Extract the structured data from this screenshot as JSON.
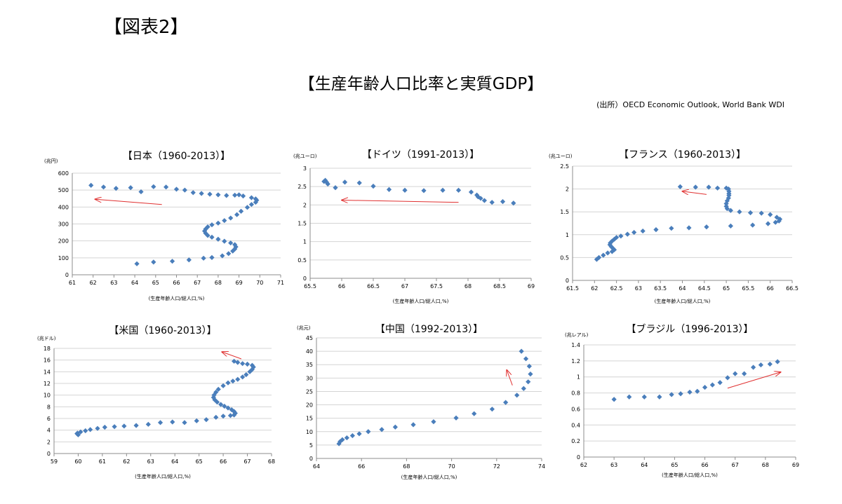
{
  "figure_label": "【図表2】",
  "main_title": "【生産年齢人口比率と実質GDP】",
  "source": "(出所）OECD Economic Outlook, World Bank WDI",
  "chart_data": [
    {
      "type": "scatter",
      "title": "【日本（1960-2013）】",
      "unit_label": "(兆円)",
      "xlabel": "(生産年齢人口/総人口,%)",
      "xlim": [
        61,
        71
      ],
      "xticks": [
        61,
        62,
        63,
        64,
        65,
        66,
        67,
        68,
        69,
        70,
        71
      ],
      "ylim": [
        0,
        600
      ],
      "yticks": [
        0,
        100,
        200,
        300,
        400,
        500,
        600
      ],
      "grid": true,
      "color": "#4a7ebb",
      "points": [
        [
          64.1,
          65
        ],
        [
          64.9,
          75
        ],
        [
          65.8,
          80
        ],
        [
          66.6,
          88
        ],
        [
          67.3,
          98
        ],
        [
          67.7,
          102
        ],
        [
          68.2,
          112
        ],
        [
          68.5,
          125
        ],
        [
          68.7,
          140
        ],
        [
          68.8,
          152
        ],
        [
          68.85,
          165
        ],
        [
          68.8,
          178
        ],
        [
          68.6,
          188
        ],
        [
          68.3,
          198
        ],
        [
          68.0,
          210
        ],
        [
          67.7,
          222
        ],
        [
          67.5,
          232
        ],
        [
          67.4,
          245
        ],
        [
          67.35,
          258
        ],
        [
          67.4,
          270
        ],
        [
          67.5,
          283
        ],
        [
          67.7,
          295
        ],
        [
          68.0,
          305
        ],
        [
          68.3,
          320
        ],
        [
          68.6,
          335
        ],
        [
          68.9,
          355
        ],
        [
          69.1,
          375
        ],
        [
          69.4,
          398
        ],
        [
          69.6,
          415
        ],
        [
          69.8,
          428
        ],
        [
          69.85,
          440
        ],
        [
          69.8,
          448
        ],
        [
          69.6,
          455
        ],
        [
          69.2,
          465
        ],
        [
          69.0,
          472
        ],
        [
          68.8,
          470
        ],
        [
          68.4,
          468
        ],
        [
          68.0,
          472
        ],
        [
          67.6,
          476
        ],
        [
          67.2,
          480
        ],
        [
          66.8,
          485
        ],
        [
          66.4,
          500
        ],
        [
          66.0,
          505
        ],
        [
          65.5,
          518
        ],
        [
          64.9,
          520
        ],
        [
          64.3,
          490
        ],
        [
          63.8,
          514
        ],
        [
          63.1,
          510
        ],
        [
          62.5,
          518
        ],
        [
          61.9,
          528
        ]
      ],
      "arrow": [
        [
          65.3,
          415
        ],
        [
          62.1,
          446
        ]
      ]
    },
    {
      "type": "scatter",
      "title": "【ドイツ（1991-2013）】",
      "unit_label": "(兆ユーロ)",
      "xlabel": "(生産年齢人口/総人口,%)",
      "xlim": [
        65.5,
        69
      ],
      "xticks": [
        65.5,
        66,
        66.5,
        67,
        67.5,
        68,
        68.5,
        69
      ],
      "ylim": [
        0,
        3
      ],
      "yticks": [
        0,
        0.5,
        1,
        1.5,
        2,
        2.5,
        3
      ],
      "grid": true,
      "color": "#4a7ebb",
      "points": [
        [
          68.72,
          2.05
        ],
        [
          68.55,
          2.09
        ],
        [
          68.38,
          2.07
        ],
        [
          68.26,
          2.12
        ],
        [
          68.2,
          2.18
        ],
        [
          68.16,
          2.22
        ],
        [
          68.14,
          2.27
        ],
        [
          68.05,
          2.35
        ],
        [
          67.85,
          2.4
        ],
        [
          67.6,
          2.4
        ],
        [
          67.3,
          2.39
        ],
        [
          67.0,
          2.4
        ],
        [
          66.75,
          2.42
        ],
        [
          66.5,
          2.51
        ],
        [
          66.28,
          2.6
        ],
        [
          66.05,
          2.62
        ],
        [
          65.9,
          2.47
        ],
        [
          65.78,
          2.57
        ],
        [
          65.76,
          2.62
        ],
        [
          65.74,
          2.67
        ],
        [
          65.72,
          2.64
        ]
      ],
      "arrow": [
        [
          67.85,
          2.07
        ],
        [
          66.0,
          2.13
        ]
      ]
    },
    {
      "type": "scatter",
      "title": "【フランス（1960-2013）】",
      "unit_label": "(兆ユーロ)",
      "xlabel": "(生産年齢人口/総人口,%)",
      "xlim": [
        61.5,
        66.5
      ],
      "xticks": [
        61.5,
        62,
        62.5,
        63,
        63.5,
        64,
        64.5,
        65,
        65.5,
        66,
        66.5
      ],
      "ylim": [
        0,
        2.5
      ],
      "yticks": [
        0,
        0.5,
        1,
        1.5,
        2,
        2.5
      ],
      "grid": true,
      "color": "#4a7ebb",
      "points": [
        [
          62.05,
          0.46
        ],
        [
          62.1,
          0.5
        ],
        [
          62.2,
          0.55
        ],
        [
          62.3,
          0.6
        ],
        [
          62.4,
          0.63
        ],
        [
          62.45,
          0.67
        ],
        [
          62.42,
          0.7
        ],
        [
          62.38,
          0.74
        ],
        [
          62.35,
          0.78
        ],
        [
          62.36,
          0.82
        ],
        [
          62.4,
          0.86
        ],
        [
          62.45,
          0.9
        ],
        [
          62.5,
          0.94
        ],
        [
          62.6,
          0.97
        ],
        [
          62.75,
          1.01
        ],
        [
          62.9,
          1.05
        ],
        [
          63.1,
          1.08
        ],
        [
          63.4,
          1.11
        ],
        [
          63.75,
          1.14
        ],
        [
          64.15,
          1.15
        ],
        [
          64.55,
          1.17
        ],
        [
          65.1,
          1.19
        ],
        [
          65.6,
          1.21
        ],
        [
          65.95,
          1.24
        ],
        [
          66.12,
          1.27
        ],
        [
          66.2,
          1.3
        ],
        [
          66.22,
          1.34
        ],
        [
          66.15,
          1.38
        ],
        [
          66.0,
          1.44
        ],
        [
          65.8,
          1.47
        ],
        [
          65.55,
          1.48
        ],
        [
          65.3,
          1.5
        ],
        [
          65.1,
          1.53
        ],
        [
          65.02,
          1.57
        ],
        [
          65.0,
          1.62
        ],
        [
          65.0,
          1.68
        ],
        [
          65.02,
          1.74
        ],
        [
          65.05,
          1.8
        ],
        [
          65.06,
          1.86
        ],
        [
          65.06,
          1.9
        ],
        [
          65.06,
          1.95
        ],
        [
          65.05,
          2.0
        ],
        [
          65.0,
          2.02
        ],
        [
          64.8,
          2.02
        ],
        [
          64.6,
          2.04
        ],
        [
          64.3,
          2.04
        ],
        [
          63.95,
          2.05
        ]
      ],
      "arrow": [
        [
          64.55,
          1.88
        ],
        [
          64.0,
          1.95
        ]
      ]
    },
    {
      "type": "scatter",
      "title": "【米国（1960-2013）】",
      "unit_label": "(兆ドル)",
      "xlabel": "(生産年齢人口/総人口,%)",
      "xlim": [
        59,
        68
      ],
      "xticks": [
        59,
        60,
        61,
        62,
        63,
        64,
        65,
        66,
        67,
        68
      ],
      "ylim": [
        0,
        18
      ],
      "yticks": [
        0,
        2,
        4,
        6,
        8,
        10,
        12,
        14,
        16,
        18
      ],
      "grid": true,
      "color": "#4a7ebb",
      "points": [
        [
          60.0,
          3.2
        ],
        [
          59.95,
          3.4
        ],
        [
          59.97,
          3.5
        ],
        [
          60.1,
          3.7
        ],
        [
          60.3,
          3.9
        ],
        [
          60.5,
          4.1
        ],
        [
          60.8,
          4.3
        ],
        [
          61.1,
          4.5
        ],
        [
          61.5,
          4.6
        ],
        [
          61.9,
          4.7
        ],
        [
          62.4,
          4.8
        ],
        [
          62.9,
          5.0
        ],
        [
          63.4,
          5.3
        ],
        [
          63.9,
          5.4
        ],
        [
          64.4,
          5.3
        ],
        [
          64.9,
          5.6
        ],
        [
          65.3,
          5.8
        ],
        [
          65.7,
          6.2
        ],
        [
          66.0,
          6.4
        ],
        [
          66.3,
          6.5
        ],
        [
          66.45,
          6.6
        ],
        [
          66.5,
          6.9
        ],
        [
          66.45,
          7.2
        ],
        [
          66.35,
          7.5
        ],
        [
          66.2,
          7.8
        ],
        [
          66.05,
          8.1
        ],
        [
          65.9,
          8.4
        ],
        [
          65.75,
          8.8
        ],
        [
          65.65,
          9.2
        ],
        [
          65.6,
          9.6
        ],
        [
          65.62,
          10.0
        ],
        [
          65.7,
          10.5
        ],
        [
          65.8,
          11.0
        ],
        [
          66.0,
          11.6
        ],
        [
          66.2,
          12.1
        ],
        [
          66.4,
          12.4
        ],
        [
          66.6,
          12.7
        ],
        [
          66.8,
          13.1
        ],
        [
          66.95,
          13.5
        ],
        [
          67.1,
          14.0
        ],
        [
          67.2,
          14.4
        ],
        [
          67.25,
          14.8
        ],
        [
          67.2,
          15.1
        ],
        [
          67.0,
          15.3
        ],
        [
          66.8,
          15.4
        ],
        [
          66.6,
          15.6
        ],
        [
          66.45,
          15.8
        ]
      ],
      "arrow": [
        [
          66.75,
          16.2
        ],
        [
          65.95,
          17.4
        ]
      ]
    },
    {
      "type": "scatter",
      "title": "【中国（1992-2013）】",
      "unit_label": "(兆元)",
      "xlabel": "(生産年齢人口/総人口,%)",
      "xlim": [
        64,
        74
      ],
      "xticks": [
        64,
        66,
        68,
        70,
        72,
        74
      ],
      "ylim": [
        0,
        45
      ],
      "yticks": [
        0,
        5,
        10,
        15,
        20,
        25,
        30,
        35,
        40,
        45
      ],
      "grid": true,
      "color": "#4a7ebb",
      "points": [
        [
          65.0,
          5.5
        ],
        [
          65.05,
          6.3
        ],
        [
          65.15,
          7.0
        ],
        [
          65.35,
          7.7
        ],
        [
          65.6,
          8.5
        ],
        [
          65.9,
          9.2
        ],
        [
          66.3,
          10.0
        ],
        [
          66.9,
          10.8
        ],
        [
          67.5,
          11.7
        ],
        [
          68.3,
          12.6
        ],
        [
          69.2,
          13.7
        ],
        [
          70.2,
          15.1
        ],
        [
          71.0,
          16.7
        ],
        [
          71.8,
          18.4
        ],
        [
          72.4,
          20.9
        ],
        [
          72.9,
          23.6
        ],
        [
          73.2,
          26.1
        ],
        [
          73.4,
          28.6
        ],
        [
          73.5,
          31.5
        ],
        [
          73.45,
          34.4
        ],
        [
          73.3,
          37.2
        ],
        [
          73.1,
          40.0
        ]
      ],
      "arrow": [
        [
          72.7,
          27.3
        ],
        [
          72.45,
          33.0
        ]
      ]
    },
    {
      "type": "scatter",
      "title": "【ブラジル（1996-2013）】",
      "unit_label": "(兆レアル)",
      "xlabel": "(生産年齢人口/総人口,%)",
      "xlim": [
        62,
        69
      ],
      "xticks": [
        62,
        63,
        64,
        65,
        66,
        67,
        68,
        69
      ],
      "ylim": [
        0,
        1.4
      ],
      "yticks": [
        0,
        0.2,
        0.4,
        0.6,
        0.8,
        1,
        1.2,
        1.4
      ],
      "grid": true,
      "color": "#4a7ebb",
      "points": [
        [
          63.0,
          0.72
        ],
        [
          63.5,
          0.75
        ],
        [
          64.0,
          0.75
        ],
        [
          64.5,
          0.75
        ],
        [
          64.9,
          0.78
        ],
        [
          65.2,
          0.79
        ],
        [
          65.5,
          0.81
        ],
        [
          65.75,
          0.82
        ],
        [
          66.0,
          0.87
        ],
        [
          66.25,
          0.9
        ],
        [
          66.5,
          0.93
        ],
        [
          66.75,
          0.99
        ],
        [
          67.0,
          1.04
        ],
        [
          67.3,
          1.04
        ],
        [
          67.6,
          1.12
        ],
        [
          67.85,
          1.15
        ],
        [
          68.15,
          1.16
        ],
        [
          68.4,
          1.19
        ]
      ],
      "arrow": [
        [
          66.75,
          0.86
        ],
        [
          68.5,
          1.06
        ]
      ]
    }
  ]
}
